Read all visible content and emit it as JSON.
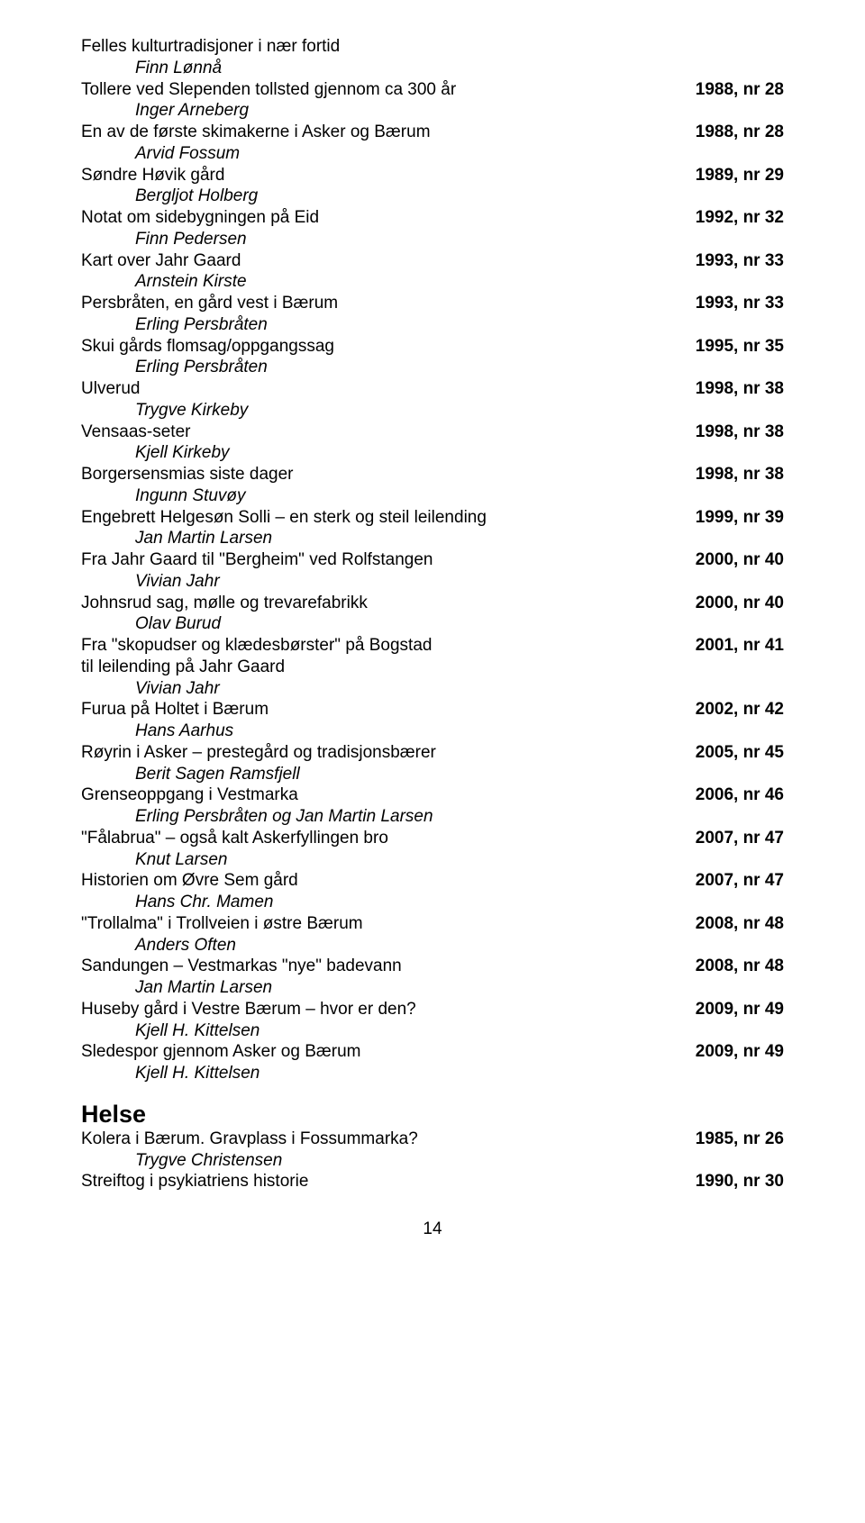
{
  "entries": [
    {
      "title": "Felles kulturtradisjoner i nær fortid",
      "ref": "",
      "author": "Finn Lønnå"
    },
    {
      "title": "Tollere ved Slependen tollsted gjennom ca 300 år",
      "ref": "1988, nr 28",
      "author": "Inger Arneberg"
    },
    {
      "title": "En av de første skimakerne i Asker og Bærum",
      "ref": "1988, nr 28",
      "author": "Arvid Fossum"
    },
    {
      "title": "Søndre Høvik gård",
      "ref": "1989, nr 29",
      "author": "Bergljot Holberg"
    },
    {
      "title": "Notat om sidebygningen på Eid",
      "ref": "1992, nr 32",
      "author": "Finn Pedersen"
    },
    {
      "title": "Kart over Jahr Gaard",
      "ref": "1993, nr 33",
      "author": "Arnstein Kirste"
    },
    {
      "title": "Persbråten, en gård vest i Bærum",
      "ref": "1993, nr 33",
      "author": "Erling Persbråten"
    },
    {
      "title": "Skui gårds flomsag/oppgangssag",
      "ref": "1995, nr 35",
      "author": "Erling Persbråten"
    },
    {
      "title": "Ulverud",
      "ref": "1998, nr 38",
      "author": "Trygve Kirkeby"
    },
    {
      "title": "Vensaas-seter",
      "ref": "1998, nr 38",
      "author": "Kjell Kirkeby"
    },
    {
      "title": "Borgersensmias siste dager",
      "ref": "1998, nr 38",
      "author": "Ingunn Stuvøy"
    },
    {
      "title": "Engebrett Helgesøn Solli – en sterk og steil leilending",
      "ref": "1999, nr 39",
      "author": "Jan Martin Larsen"
    },
    {
      "title": "Fra Jahr Gaard til \"Bergheim\" ved Rolfstangen",
      "ref": "2000, nr 40",
      "author": "Vivian Jahr"
    },
    {
      "title": "Johnsrud sag, mølle og trevarefabrikk",
      "ref": "2000, nr 40",
      "author": "Olav Burud"
    },
    {
      "title": "Fra \"skopudser og klædesbørster\" på Bogstad",
      "ref": "2001, nr 41",
      "continuation": "til leilending på Jahr Gaard",
      "author": "Vivian Jahr"
    },
    {
      "title": "Furua på Holtet i Bærum",
      "ref": "2002, nr 42",
      "author": "Hans Aarhus"
    },
    {
      "title": "Røyrin i Asker – prestegård og tradisjonsbærer",
      "ref": "2005, nr 45",
      "author": "Berit Sagen Ramsfjell"
    },
    {
      "title": "Grenseoppgang i Vestmarka",
      "ref": "2006, nr 46",
      "author": "Erling Persbråten og Jan Martin Larsen"
    },
    {
      "title": "\"Fålabrua\" – også  kalt Askerfyllingen bro",
      "ref": "2007, nr 47",
      "author": "Knut Larsen"
    },
    {
      "title": "Historien om Øvre Sem gård",
      "ref": "2007, nr 47",
      "author": "Hans Chr. Mamen"
    },
    {
      "title": "\"Trollalma\" i Trollveien i østre Bærum",
      "ref": "2008, nr 48",
      "author": "Anders Often"
    },
    {
      "title": "Sandungen – Vestmarkas \"nye\" badevann",
      "ref": "2008, nr 48",
      "author": "Jan Martin Larsen"
    },
    {
      "title": "Huseby gård i Vestre Bærum – hvor er den?",
      "ref": "2009, nr 49",
      "author": "Kjell H. Kittelsen"
    },
    {
      "title": "Sledespor gjennom Asker og Bærum",
      "ref": "2009, nr 49",
      "author": "Kjell H. Kittelsen"
    }
  ],
  "section2": {
    "heading": "Helse",
    "entries": [
      {
        "title": "Kolera i Bærum. Gravplass i Fossummarka?",
        "ref": "1985, nr 26",
        "author": "Trygve Christensen"
      },
      {
        "title": "Streiftog i psykiatriens historie",
        "ref": "1990, nr 30",
        "author": ""
      }
    ]
  },
  "pageNumber": "14"
}
